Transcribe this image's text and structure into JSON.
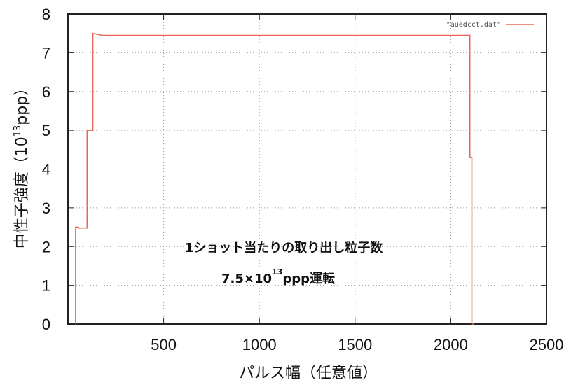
{
  "chart_data": {
    "type": "line",
    "xlabel": "パルス幅（任意値）",
    "ylabel": {
      "prefix": "中性子強度（10",
      "sup": "13",
      "suffix": "ppp）"
    },
    "xlim": [
      0,
      2500
    ],
    "ylim": [
      0,
      8
    ],
    "xticks": [
      500,
      1000,
      1500,
      2000,
      2500
    ],
    "xtick_labels": [
      "500",
      "1000",
      "1500",
      "2000",
      "2500"
    ],
    "yticks": [
      0,
      1,
      2,
      3,
      4,
      5,
      6,
      7,
      8
    ],
    "ytick_labels": [
      "0",
      "1",
      "2",
      "3",
      "4",
      "5",
      "6",
      "7",
      "8"
    ],
    "grid": true,
    "legend_position": "top-right",
    "series": [
      {
        "name": "\"auedcct.dat\"",
        "color": "#e8675a",
        "x": [
          40,
          40,
          55,
          55,
          100,
          100,
          130,
          130,
          150,
          180,
          2100,
          2100,
          2110,
          2110,
          2120
        ],
        "y": [
          0,
          2.5,
          2.5,
          2.48,
          2.48,
          5.0,
          5.0,
          7.5,
          7.48,
          7.45,
          7.45,
          4.3,
          4.3,
          0,
          0
        ]
      }
    ],
    "annotations": {
      "line1": "1ショット当たりの取り出し粒子数",
      "line2_main": "7.5×10",
      "line2_sup": "13",
      "line2_tail": "ppp運転"
    }
  }
}
